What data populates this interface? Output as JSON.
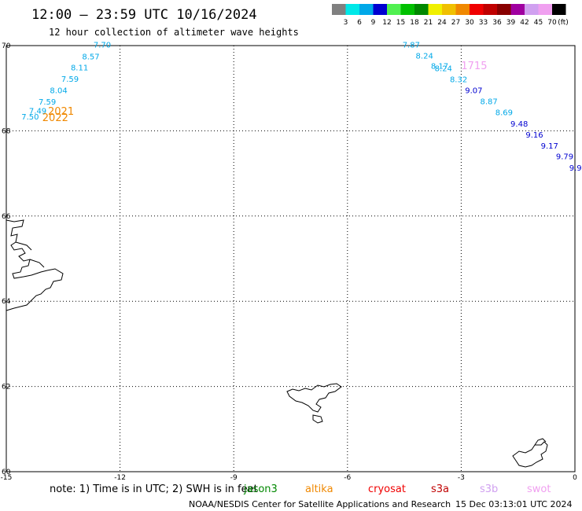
{
  "header": {
    "title": "12:00 — 23:59 UTC 10/16/2024",
    "subtitle": "12 hour collection of altimeter wave heights"
  },
  "legend": {
    "unit": "(ft)",
    "bins": [
      {
        "label": "3",
        "color": "#808080"
      },
      {
        "label": "6",
        "color": "#00e8e8"
      },
      {
        "label": "9",
        "color": "#00a8e8"
      },
      {
        "label": "12",
        "color": "#0000d0"
      },
      {
        "label": "15",
        "color": "#50f050"
      },
      {
        "label": "18",
        "color": "#00c000"
      },
      {
        "label": "21",
        "color": "#008800"
      },
      {
        "label": "24",
        "color": "#f0f000"
      },
      {
        "label": "27",
        "color": "#f0c000"
      },
      {
        "label": "30",
        "color": "#f08800"
      },
      {
        "label": "33",
        "color": "#f00000"
      },
      {
        "label": "36",
        "color": "#c00000"
      },
      {
        "label": "39",
        "color": "#880000"
      },
      {
        "label": "42",
        "color": "#a000a0"
      },
      {
        "label": "45",
        "color": "#d0a0f0"
      },
      {
        "label": "70",
        "color": "#f0a0f0"
      },
      {
        "label": "",
        "color": "#000000"
      }
    ]
  },
  "axes": {
    "lon_ticks": [
      "-15",
      "-12",
      "-9",
      "-6",
      "-3",
      "0"
    ],
    "lat_ticks": [
      "70",
      "68",
      "66",
      "64",
      "62",
      "60"
    ]
  },
  "map_data": {
    "lon_range": [
      -15,
      0
    ],
    "lat_range": [
      60,
      70
    ],
    "grid_lons": [
      -12,
      -9,
      -6,
      -3
    ],
    "grid_lats": [
      68,
      66,
      64,
      62
    ],
    "points": [
      {
        "text": "7.70",
        "lon": -12.7,
        "lat": 69.95,
        "color": "#00a8e8"
      },
      {
        "text": "8.57",
        "lon": -13.0,
        "lat": 69.68,
        "color": "#00a8e8"
      },
      {
        "text": "8.11",
        "lon": -13.3,
        "lat": 69.42,
        "color": "#00a8e8"
      },
      {
        "text": "7.59",
        "lon": -13.55,
        "lat": 69.15,
        "color": "#00a8e8"
      },
      {
        "text": "8.04",
        "lon": -13.85,
        "lat": 68.88,
        "color": "#00a8e8"
      },
      {
        "text": "7.59",
        "lon": -14.15,
        "lat": 68.62,
        "color": "#00a8e8"
      },
      {
        "text": "7.49",
        "lon": -14.4,
        "lat": 68.4,
        "color": "#00a8e8"
      },
      {
        "text": "7.50",
        "lon": -14.6,
        "lat": 68.27,
        "color": "#00a8e8"
      },
      {
        "text": "7.87",
        "lon": -4.55,
        "lat": 69.95,
        "color": "#00a8e8"
      },
      {
        "text": "8.24",
        "lon": -4.2,
        "lat": 69.7,
        "color": "#00a8e8"
      },
      {
        "text": "8.17",
        "lon": -3.8,
        "lat": 69.46,
        "color": "#00a8e8"
      },
      {
        "text": "8.24",
        "lon": -3.7,
        "lat": 69.4,
        "color": "#00a8e8"
      },
      {
        "text": "8.32",
        "lon": -3.3,
        "lat": 69.14,
        "color": "#00a8e8"
      },
      {
        "text": "9.07",
        "lon": -2.9,
        "lat": 68.88,
        "color": "#0000d0"
      },
      {
        "text": "8.87",
        "lon": -2.5,
        "lat": 68.63,
        "color": "#00a8e8"
      },
      {
        "text": "8.69",
        "lon": -2.1,
        "lat": 68.37,
        "color": "#00a8e8"
      },
      {
        "text": "9.48",
        "lon": -1.7,
        "lat": 68.1,
        "color": "#0000d0"
      },
      {
        "text": "9.16",
        "lon": -1.3,
        "lat": 67.84,
        "color": "#0000d0"
      },
      {
        "text": "9.17",
        "lon": -0.9,
        "lat": 67.58,
        "color": "#0000d0"
      },
      {
        "text": "9.79",
        "lon": -0.5,
        "lat": 67.33,
        "color": "#0000d0"
      },
      {
        "text": "9.9",
        "lon": -0.15,
        "lat": 67.07,
        "color": "#0000d0"
      }
    ],
    "passes": [
      {
        "text": "2021",
        "lon": -13.9,
        "lat": 68.38,
        "color": "#f08800"
      },
      {
        "text": "2022",
        "lon": -14.05,
        "lat": 68.23,
        "color": "#f08800"
      },
      {
        "text": "1715",
        "lon": -3.0,
        "lat": 69.45,
        "color": "#f0a0f0"
      }
    ]
  },
  "footer": {
    "note": "note:  1) Time is in UTC; 2) SWH is in feet",
    "satellites": [
      {
        "name": "jason3",
        "color": "#008800"
      },
      {
        "name": "altika",
        "color": "#f08800"
      },
      {
        "name": "cryosat",
        "color": "#f00000"
      },
      {
        "name": "s3a",
        "color": "#c00000"
      },
      {
        "name": "s3b",
        "color": "#d0a0f0"
      },
      {
        "name": "swot",
        "color": "#f0a0f0"
      }
    ],
    "credit": "NOAA/NESDIS Center for Satellite Applications and Research",
    "generated": "15 Dec 03:13:01 UTC 2024"
  }
}
